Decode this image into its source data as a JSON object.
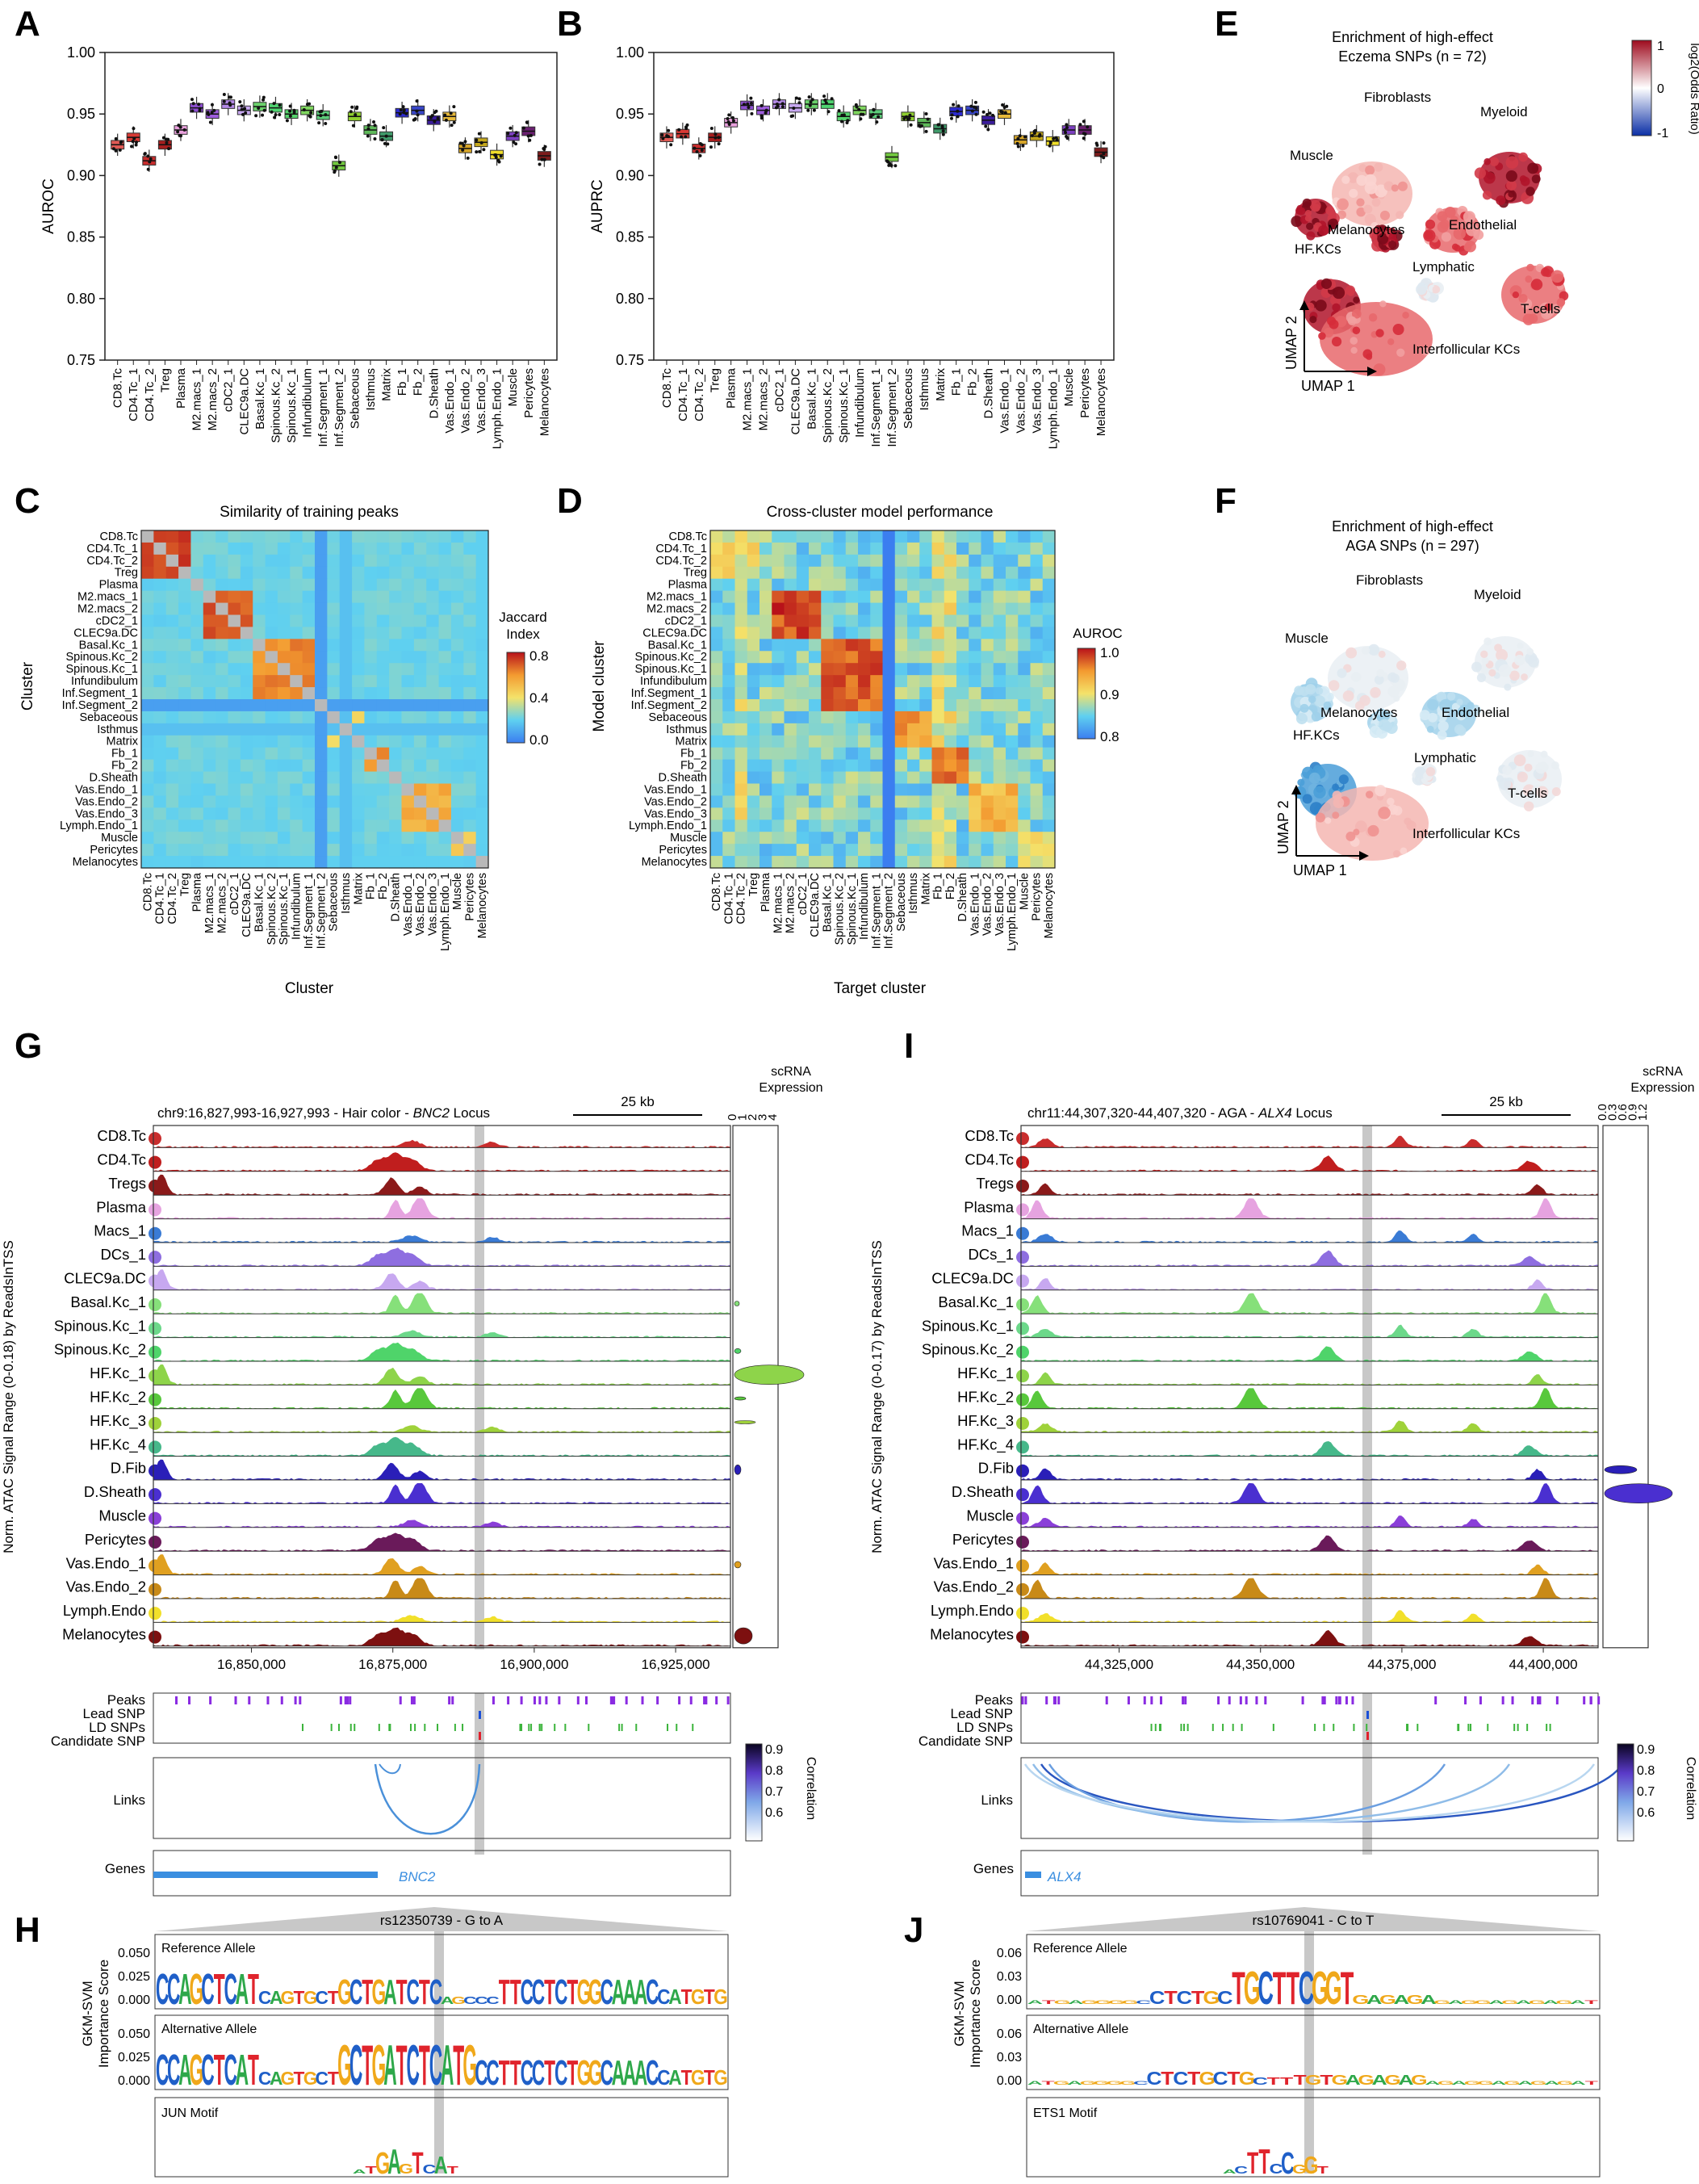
{
  "panel_letters": [
    "A",
    "B",
    "C",
    "D",
    "E",
    "F",
    "G",
    "H",
    "I",
    "J"
  ],
  "colors": {
    "accent": "#1f4fb4",
    "grey": "#c8c8c8",
    "peak": "#8a2be2",
    "ld": "#3cb43c",
    "lead": "#1a4fd8",
    "cand": "#e0202c"
  },
  "clusters": [
    "CD8.Tc",
    "CD4.Tc_1",
    "CD4.Tc_2",
    "Treg",
    "Plasma",
    "M2.macs_1",
    "M2.macs_2",
    "cDC2_1",
    "CLEC9a.DC",
    "Basal.Kc_1",
    "Spinous.Kc_2",
    "Spinous.Kc_1",
    "Infundibulum",
    "Inf.Segment_1",
    "Inf.Segment_2",
    "Sebaceous",
    "Isthmus",
    "Matrix",
    "Fb_1",
    "Fb_2",
    "D.Sheath",
    "Vas.Endo_1",
    "Vas.Endo_2",
    "Vas.Endo_3",
    "Lymph.Endo_1",
    "Muscle",
    "Pericytes",
    "Melanocytes"
  ],
  "cluster_colors": [
    "#e05a55",
    "#d83a35",
    "#c92d2d",
    "#a51e1e",
    "#e9a0dd",
    "#8e4fd0",
    "#9e5ddc",
    "#b48ae6",
    "#c7a8f0",
    "#6bd26b",
    "#4fd470",
    "#55d36c",
    "#7fd65f",
    "#5ccc7a",
    "#72c93f",
    "#8fcf2f",
    "#5fba5a",
    "#3f9a6a",
    "#2c2ad0",
    "#3846c8",
    "#3a1c9c",
    "#e7b93a",
    "#d6a528",
    "#c5a81c",
    "#f0de2a",
    "#7c3fc0",
    "#6a2070",
    "#7d1c1c"
  ],
  "chart_data": [
    {
      "type": "box",
      "panel": "A",
      "ylabel": "AUROC",
      "ylim": [
        0.75,
        1.0
      ],
      "yticks": [
        0.75,
        0.8,
        0.85,
        0.9,
        0.95,
        1.0
      ],
      "ytick_labels": [
        "0.75",
        "0.80",
        "0.85",
        "0.90",
        "0.95",
        "1.00"
      ],
      "values": [
        0.925,
        0.931,
        0.912,
        0.925,
        0.937,
        0.955,
        0.95,
        0.958,
        0.953,
        0.956,
        0.955,
        0.95,
        0.953,
        0.949,
        0.908,
        0.948,
        0.937,
        0.932,
        0.951,
        0.953,
        0.945,
        0.948,
        0.922,
        0.927,
        0.917,
        0.932,
        0.936,
        0.916
      ]
    },
    {
      "type": "box",
      "panel": "B",
      "ylabel": "AUPRC",
      "ylim": [
        0.75,
        1.0
      ],
      "yticks": [
        0.75,
        0.8,
        0.85,
        0.9,
        0.95,
        1.0
      ],
      "ytick_labels": [
        "0.75",
        "0.80",
        "0.85",
        "0.90",
        "0.95",
        "1.00"
      ],
      "values": [
        0.931,
        0.934,
        0.922,
        0.931,
        0.943,
        0.957,
        0.953,
        0.958,
        0.955,
        0.958,
        0.958,
        0.948,
        0.953,
        0.95,
        0.915,
        0.948,
        0.943,
        0.938,
        0.952,
        0.953,
        0.945,
        0.95,
        0.929,
        0.932,
        0.928,
        0.937,
        0.937,
        0.919
      ]
    },
    {
      "type": "heatmap",
      "panel": "C",
      "title": "Similarity of training peaks",
      "xlabel": "Cluster",
      "ylabel": "Cluster",
      "legend_title": [
        "Jaccard",
        "Index"
      ],
      "legend_ticks": [
        "0.8",
        "0.4",
        "0.0"
      ],
      "blocks": [
        [
          0,
          3,
          0.72
        ],
        [
          4,
          4,
          0.6
        ],
        [
          5,
          8,
          0.7
        ],
        [
          9,
          13,
          0.62
        ],
        [
          15,
          17,
          0.4
        ],
        [
          18,
          19,
          0.6
        ],
        [
          21,
          24,
          0.55
        ],
        [
          25,
          26,
          0.45
        ]
      ]
    },
    {
      "type": "heatmap",
      "panel": "D",
      "title": "Cross-cluster model performance",
      "xlabel": "Target cluster",
      "ylabel": "Model cluster",
      "legend_title": [
        "AUROC"
      ],
      "legend_ticks": [
        "1.0",
        "0.9",
        "0.8"
      ],
      "blocks": [
        [
          0,
          3,
          0.9
        ],
        [
          5,
          8,
          0.98
        ],
        [
          9,
          14,
          0.97
        ],
        [
          15,
          17,
          0.95
        ],
        [
          18,
          20,
          0.96
        ],
        [
          21,
          24,
          0.93
        ],
        [
          25,
          27,
          0.9
        ]
      ]
    }
  ],
  "panel_C": {
    "title": "Similarity of training peaks",
    "xlabel": "Cluster",
    "ylabel": "Cluster",
    "legend_title_1": "Jaccard",
    "legend_title_2": "Index",
    "ticks": [
      "0.8",
      "0.4",
      "0.0"
    ]
  },
  "panel_D": {
    "title": "Cross-cluster model performance",
    "xlabel": "Target cluster",
    "ylabel": "Model cluster",
    "legend_title": "AUROC",
    "ticks": [
      "1.0",
      "0.9",
      "0.8"
    ]
  },
  "panel_E": {
    "title_1": "Enrichment of high-effect",
    "title_2": "Eczema SNPs (n = 72)",
    "legend_title": "log2(Odds Ratio)",
    "legend_ticks": [
      "1",
      "0",
      "-1"
    ],
    "umap1": "UMAP 1",
    "umap2": "UMAP 2",
    "labels": [
      "Fibroblasts",
      "Myeloid",
      "Muscle",
      "Endothelial",
      "Melanocytes",
      "Lymphatic",
      "HF.KCs",
      "T-cells",
      "Interfollicular KCs"
    ]
  },
  "panel_F": {
    "title_1": "Enrichment of high-effect",
    "title_2": "AGA SNPs (n = 297)",
    "umap1": "UMAP 1",
    "umap2": "UMAP 2",
    "labels": [
      "Fibroblasts",
      "Myeloid",
      "Muscle",
      "Melanocytes",
      "Endothelial",
      "HF.KCs",
      "Lymphatic",
      "T-cells",
      "Interfollicular KCs"
    ]
  },
  "tracks": [
    "CD8.Tc",
    "CD4.Tc",
    "Tregs",
    "Plasma",
    "Macs_1",
    "DCs_1",
    "CLEC9a.DC",
    "Basal.Kc_1",
    "Spinous.Kc_1",
    "Spinous.Kc_2",
    "HF.Kc_1",
    "HF.Kc_2",
    "HF.Kc_3",
    "HF.Kc_4",
    "D.Fib",
    "D.Sheath",
    "Muscle",
    "Pericytes",
    "Vas.Endo_1",
    "Vas.Endo_2",
    "Lymph.Endo",
    "Melanocytes"
  ],
  "track_colors": [
    "#c92d2d",
    "#c01e1e",
    "#8b1a1a",
    "#e6a3e0",
    "#3a7bd5",
    "#8e6ee0",
    "#c7a8f0",
    "#86e07a",
    "#6cd88a",
    "#4fd46a",
    "#8ed44a",
    "#58c83c",
    "#9fd23a",
    "#46b88a",
    "#2a1fb8",
    "#4a2fd0",
    "#8a3fd8",
    "#6a1a5a",
    "#e0a020",
    "#c88a18",
    "#f2e02a",
    "#7d1010"
  ],
  "panel_G": {
    "locus_pre": "chr9:16,827,993-16,927,993 - Hair color - ",
    "locus_gene": "BNC2",
    "locus_post": " Locus",
    "scale": "25 kb",
    "scrna_title_1": "scRNA",
    "scrna_title_2": "Expression",
    "scrna_ticks": [
      "0",
      "1",
      "2",
      "3",
      "4"
    ],
    "ylabel": "Norm. ATAC Signal Range (0-0.18) by ReadsInTSS",
    "xticks": [
      "16,850,000",
      "16,875,000",
      "16,900,000",
      "16,925,000"
    ],
    "annot": [
      "Peaks",
      "Lead SNP",
      "LD SNPs",
      "Candidate SNP"
    ],
    "links_label": "Links",
    "genes_label": "Genes",
    "gene": "BNC2",
    "corr_label": "Correlation",
    "corr_ticks": [
      "0.9",
      "0.8",
      "0.7",
      "0.6"
    ]
  },
  "panel_I": {
    "locus_pre": "chr11:44,307,320-44,407,320 - AGA - ",
    "locus_gene": "ALX4",
    "locus_post": " Locus",
    "scale": "25 kb",
    "scrna_title_1": "scRNA",
    "scrna_title_2": "Expression",
    "scrna_ticks": [
      "0.0",
      "0.3",
      "0.6",
      "0.9",
      "1.2"
    ],
    "ylabel": "Norm. ATAC Signal Range (0-0.17) by ReadsInTSS",
    "xticks": [
      "44,325,000",
      "44,350,000",
      "44,375,000",
      "44,400,000"
    ],
    "annot": [
      "Peaks",
      "Lead SNP",
      "LD SNPs",
      "Candidate SNP"
    ],
    "links_label": "Links",
    "genes_label": "Genes",
    "gene": "ALX4",
    "corr_label": "Correlation",
    "corr_ticks": [
      "0.9",
      "0.8",
      "0.7",
      "0.6"
    ]
  },
  "panel_H": {
    "snp": "rs12350739 - G to A",
    "ylabel_1": "GKM-SVM",
    "ylabel_2": "Importance Score",
    "yticks": [
      "0.050",
      "0.025",
      "0.000"
    ],
    "ref_label": "Reference Allele",
    "alt_label": "Alternative Allele",
    "motif_label": "JUN Motif",
    "ref_seq": "CCAGCTCATCAGTGCTGCTGATCTCAGCCCTTCCTCTGGCAAACCATGTG",
    "alt_seq": "CCAGCTCATCAGTGCTGCTGATCTCATGCCTTCCTCTGGCAAACCATGTG",
    "motif_seq": "ATGAGTCAT"
  },
  "panel_J": {
    "snp": "rs10769041 - C to T",
    "ylabel_1": "GKM-SVM",
    "ylabel_2": "Importance Score",
    "yticks": [
      "0.06",
      "0.03",
      "0.00"
    ],
    "ref_label": "Reference Allele",
    "alt_label": "Alternative Allele",
    "motif_label": "ETS1 Motif",
    "ref_seq": "ATGAGGGGCCTCTGCTGCTTCGGTGAGAGAGAGGAGAGAGAT",
    "alt_seq": "ATGAGGGGCCTCTGCTGCTTTGTGAGAGAGAGAGGAGAGAGAT",
    "motif_seq": "ACTTCCGGT"
  }
}
